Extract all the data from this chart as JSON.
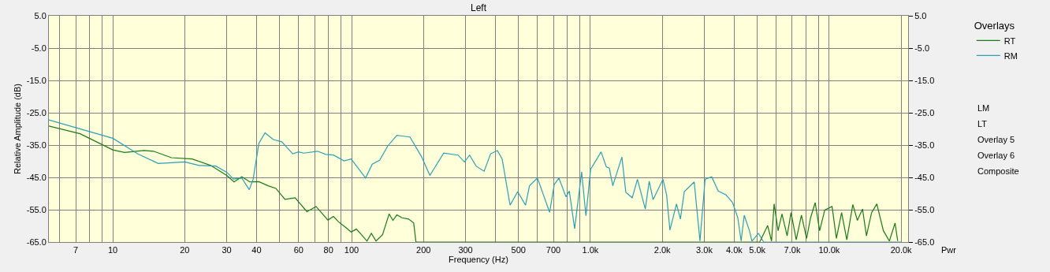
{
  "chart_data": {
    "type": "line",
    "title": "Left",
    "xlabel": "Frequency (Hz)",
    "ylabel": "Relative Amplitude (dB)",
    "legend_title": "Overlays",
    "log": "x",
    "grid": true,
    "legend": "right",
    "marker": "none",
    "line_style": "solid",
    "xlim": [
      5.4,
      21400
    ],
    "ylim": [
      -65,
      5
    ],
    "y2lim": [
      -65,
      5
    ],
    "xticks": [
      {
        "value": 6,
        "label": null
      },
      7,
      {
        "value": 8,
        "label": null
      },
      {
        "value": 9,
        "label": null
      },
      10,
      20,
      30,
      40,
      {
        "value": 50,
        "label": null
      },
      60,
      {
        "value": 70,
        "label": null
      },
      80,
      {
        "value": 90,
        "label": null
      },
      100,
      200,
      300,
      {
        "value": 400,
        "label": null
      },
      500,
      {
        "value": 600,
        "label": null
      },
      700,
      {
        "value": 800,
        "label": null
      },
      {
        "value": 900,
        "label": null
      },
      {
        "value": 1000,
        "label": "1.0k"
      },
      {
        "value": 2000,
        "label": "2.0k"
      },
      {
        "value": 3000,
        "label": "3.0k"
      },
      {
        "value": 4000,
        "label": "4.0k"
      },
      {
        "value": 5000,
        "label": "5.0k"
      },
      {
        "value": 6000,
        "label": null
      },
      {
        "value": 7000,
        "label": "7.0k"
      },
      {
        "value": 8000,
        "label": null
      },
      {
        "value": 9000,
        "label": null
      },
      {
        "value": 10000,
        "label": "10.0k"
      },
      {
        "value": 20000,
        "label": "20.0k"
      }
    ],
    "yticks": [
      {
        "value": 5,
        "label": "5.0"
      },
      {
        "value": -5,
        "label": "-5.0"
      },
      {
        "value": -15,
        "label": "-15.0"
      },
      {
        "value": -25,
        "label": "-25.0"
      },
      {
        "value": -35,
        "label": "-35.0"
      },
      {
        "value": -45,
        "label": "-45.0"
      },
      {
        "value": -55,
        "label": "-55.0"
      },
      {
        "value": -65,
        "label": "-65.0"
      }
    ],
    "y2ticks": [
      {
        "value": 5,
        "label": "5.0"
      },
      {
        "value": -5,
        "label": "-5.0"
      },
      {
        "value": -15,
        "label": "-15.0"
      },
      {
        "value": -25,
        "label": "-25.0"
      },
      {
        "value": -35,
        "label": "-35.0"
      },
      {
        "value": -45,
        "label": "-45.0"
      },
      {
        "value": -55,
        "label": "-55.0"
      },
      {
        "value": -65,
        "label": "-65.0"
      }
    ],
    "series": [
      {
        "name": "RT",
        "color": "#1a7a1a",
        "x": [
          5.4,
          7.3,
          10,
          11.2,
          13.5,
          14.8,
          17.6,
          21.5,
          25.7,
          30,
          32.2,
          34.7,
          37.5,
          40.9,
          44.7,
          48.2,
          52.6,
          58,
          65,
          71,
          79.6,
          84,
          88,
          95,
          99.5,
          104.7,
          110,
          116,
          121,
          126.6,
          134.8,
          143.6,
          149,
          154.8,
          162.6,
          173.3,
          182,
          186,
          1000,
          5117,
          5523,
          5736,
          5880,
          6108,
          6343,
          6665,
          6922,
          7277,
          7650,
          8043,
          8354,
          8737,
          9120,
          9581,
          10280,
          10720,
          11270,
          11850,
          12560,
          13120,
          13790,
          14320,
          15050,
          15830,
          16860,
          17860,
          18870,
          19360
        ],
        "values": [
          -29.1,
          -31.5,
          -36.5,
          -37.3,
          -36.7,
          -36.9,
          -38.9,
          -39.3,
          -41.3,
          -44.4,
          -46.4,
          -44.8,
          -46.4,
          -46.3,
          -47.6,
          -48.4,
          -51.8,
          -51.3,
          -55.6,
          -54,
          -58.2,
          -57.1,
          -58.7,
          -60.6,
          -61.9,
          -61,
          -62.7,
          -64.7,
          -62.3,
          -64.7,
          -62.7,
          -56.3,
          -58.3,
          -56.6,
          -57.5,
          -57.9,
          -59.1,
          -65,
          -65,
          -65,
          -59.9,
          -64.7,
          -53.2,
          -61.5,
          -56.3,
          -63.1,
          -55.9,
          -64.3,
          -56.7,
          -63.9,
          -57.5,
          -52.8,
          -61.5,
          -55.1,
          -54,
          -63.9,
          -55.9,
          -64.3,
          -53.4,
          -58.3,
          -54.8,
          -63.1,
          -55.9,
          -53.2,
          -61.5,
          -64.7,
          -59.1,
          -64.7
        ]
      },
      {
        "name": "RM",
        "color": "#2aa0b8",
        "x": [
          5.4,
          10,
          12.7,
          15.5,
          20,
          23,
          27,
          30,
          32,
          34.7,
          37.3,
          38.7,
          40.9,
          43.4,
          47,
          51,
          56.7,
          60,
          63,
          72,
          78,
          84,
          93,
          99.6,
          114.5,
          122,
          131,
          141.7,
          154.7,
          175.5,
          196,
          212.8,
          243,
          279,
          297,
          312,
          332,
          359,
          382,
          408,
          427,
          461,
          496,
          535,
          556,
          600,
          675,
          706,
          738,
          790,
          816,
          859,
          919,
          958,
          1002,
          1109,
          1165,
          1200,
          1241,
          1355,
          1407,
          1497,
          1574,
          1698,
          1763,
          1830,
          2013,
          2085,
          2153,
          2294,
          2381,
          2473,
          2721,
          2876,
          3022,
          3220,
          3430,
          3698,
          3939,
          4142,
          4277,
          4407,
          4635,
          4748,
          5055,
          5315,
          20000
        ],
        "values": [
          -27.2,
          -32.9,
          -37.7,
          -40.7,
          -40.2,
          -41.3,
          -41.5,
          -43.4,
          -45.5,
          -45.2,
          -48.8,
          -45.6,
          -34.5,
          -31.2,
          -33.3,
          -34,
          -37.7,
          -37.1,
          -37.5,
          -36.9,
          -37.9,
          -38.1,
          -39.9,
          -39.3,
          -45.2,
          -40.9,
          -39.7,
          -35.3,
          -32,
          -32.5,
          -38.5,
          -44.4,
          -37.5,
          -38.1,
          -40.2,
          -38.1,
          -41.5,
          -43.1,
          -37.7,
          -36.7,
          -39.3,
          -53.6,
          -49.4,
          -53.6,
          -47.6,
          -45.2,
          -55.8,
          -47.2,
          -45.2,
          -51,
          -49.2,
          -60.9,
          -43.3,
          -56.9,
          -42.5,
          -37.1,
          -41.7,
          -42.1,
          -47.6,
          -38.7,
          -49.6,
          -51.3,
          -45.6,
          -54.8,
          -46.2,
          -51.9,
          -45.6,
          -50.4,
          -61.3,
          -53.2,
          -57.9,
          -49.4,
          -46.4,
          -64.7,
          -45.6,
          -44.8,
          -49.2,
          -50.4,
          -52.8,
          -57.5,
          -64.7,
          -56.7,
          -61.5,
          -64.7,
          -62.3,
          -65,
          -65
        ]
      }
    ],
    "annotations": [
      "LM",
      "LT",
      "Overlay 5",
      "Overlay 6",
      "Composite",
      "Pwr"
    ]
  }
}
